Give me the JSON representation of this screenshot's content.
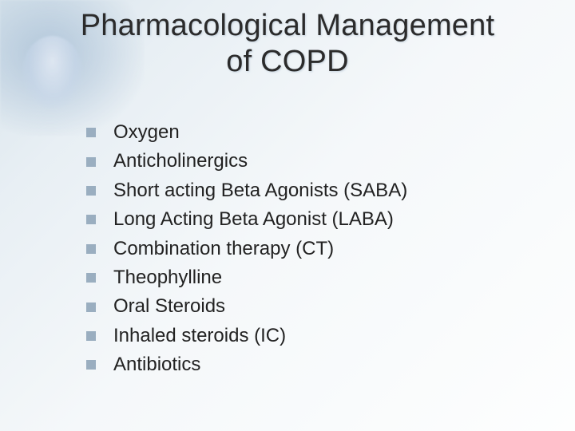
{
  "slide": {
    "title_line1": "Pharmacological Management",
    "title_line2": "of COPD",
    "title_fontsize": 38,
    "title_color": "#2b2b2b",
    "body_fontsize": 24,
    "body_color": "#222222",
    "bullet_color": "#9aaec0",
    "bullet_size": 12,
    "background_gradient": [
      "#d8e4ec",
      "#e8eff4",
      "#f5f8fa",
      "#fdfefe"
    ],
    "items": [
      "Oxygen",
      "Anticholinergics",
      "Short acting Beta Agonists (SABA)",
      "Long Acting Beta Agonist (LABA)",
      "Combination therapy (CT)",
      "Theophylline",
      "Oral Steroids",
      "Inhaled steroids (IC)",
      "Antibiotics"
    ]
  }
}
